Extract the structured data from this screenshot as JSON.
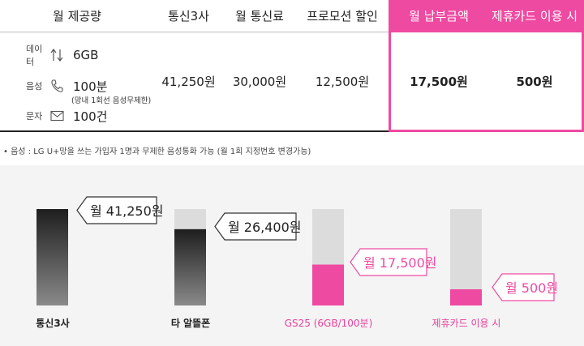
{
  "table": {
    "headers": [
      "월 제공량",
      "통신3사",
      "월 통신료",
      "프로모션 할인",
      "월 납부금액",
      "제휴카드 이용 시"
    ],
    "provide": [
      {
        "label": "데이터",
        "icon": "updown-arrows-icon",
        "value": "6GB"
      },
      {
        "label": "음성",
        "icon": "phone-icon",
        "value": "100분",
        "sub": "(망내 1회선 음성무제한)"
      },
      {
        "label": "문자",
        "icon": "envelope-icon",
        "value": "100건"
      }
    ],
    "carrier_price": "41,250원",
    "monthly_fee": "30,000원",
    "promo_discount": "12,500원",
    "monthly_payment": "17,500원",
    "card_price": "500원"
  },
  "note": "• 음성 : LG U+망을 쓰는 가입자 1명과 무제한 음성통화 가능 (월 1회 지정번호 변경가능)",
  "colors": {
    "accent": "#ef4aa2",
    "dark": "#222222",
    "bar_bg": "#dcdcdc"
  },
  "chart_data": {
    "type": "bar",
    "categories": [
      "통신3사",
      "타 알뜰폰",
      "GS25 (6GB/100분)",
      "제휴카드 이용 시"
    ],
    "values": [
      41250,
      26400,
      17500,
      500
    ],
    "value_labels": [
      "월 41,250원",
      "월 26,400원",
      "월 17,500원",
      "월 500원"
    ],
    "ylim": [
      0,
      41250
    ],
    "title": "",
    "xlabel": "",
    "ylabel": ""
  }
}
